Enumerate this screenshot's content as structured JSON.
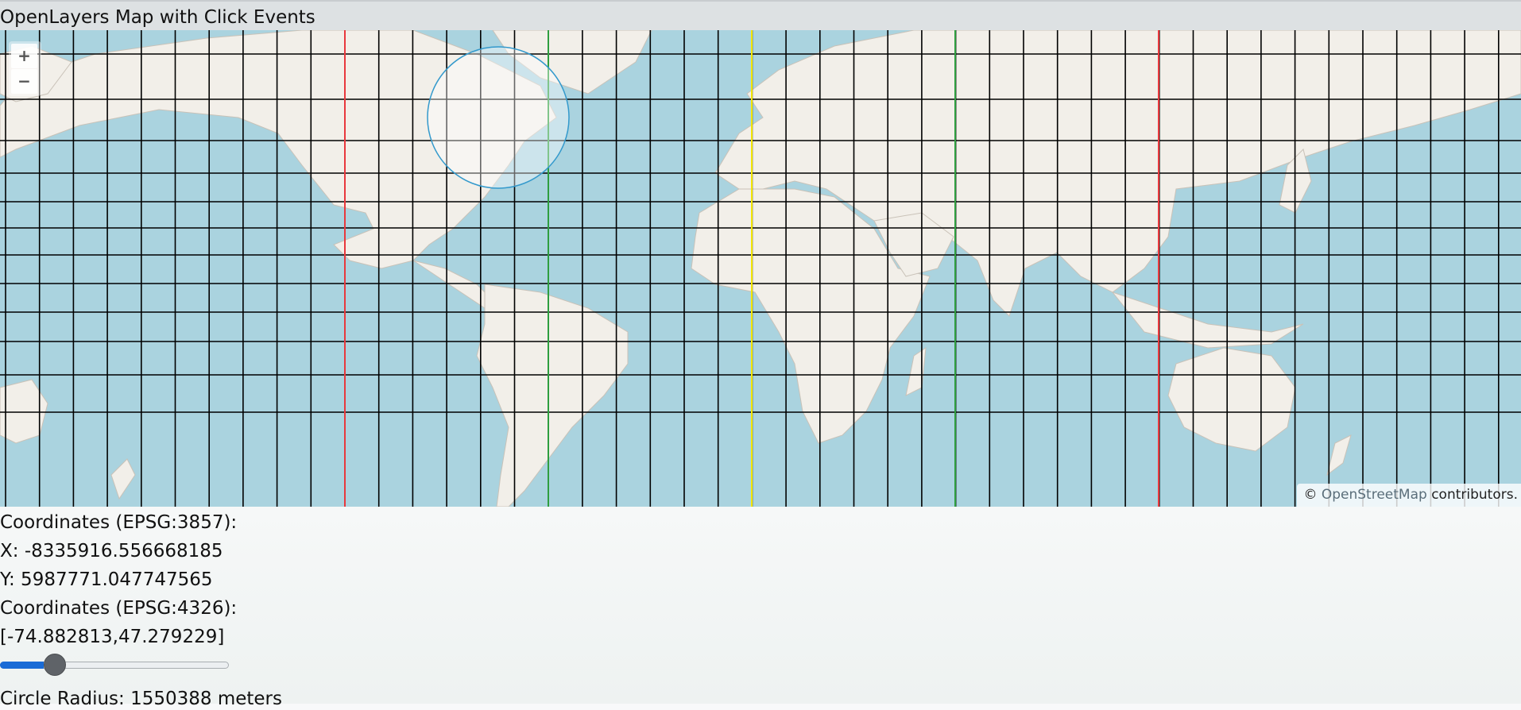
{
  "title": "OpenLayers Map with Click Events",
  "map": {
    "zoom_in_label": "+",
    "zoom_out_label": "−",
    "attribution_prefix": "©",
    "attribution_link": "OpenStreetMap",
    "attribution_suffix": "contributors.",
    "colors": {
      "water": "#aad3df",
      "land": "#f2efe9",
      "grid": "#000000",
      "circle_stroke": "#3399cc"
    }
  },
  "info": {
    "epsg3857_label": "Coordinates (EPSG:3857):",
    "x_text": "X: -8335916.556668185",
    "y_text": "Y: 5987771.047747565",
    "epsg4326_label": "Coordinates (EPSG:4326):",
    "lonlat_text": "[-74.882813,47.279229]",
    "slider_fraction": 0.19,
    "radius_text": "Circle Radius: 1550388 meters"
  }
}
